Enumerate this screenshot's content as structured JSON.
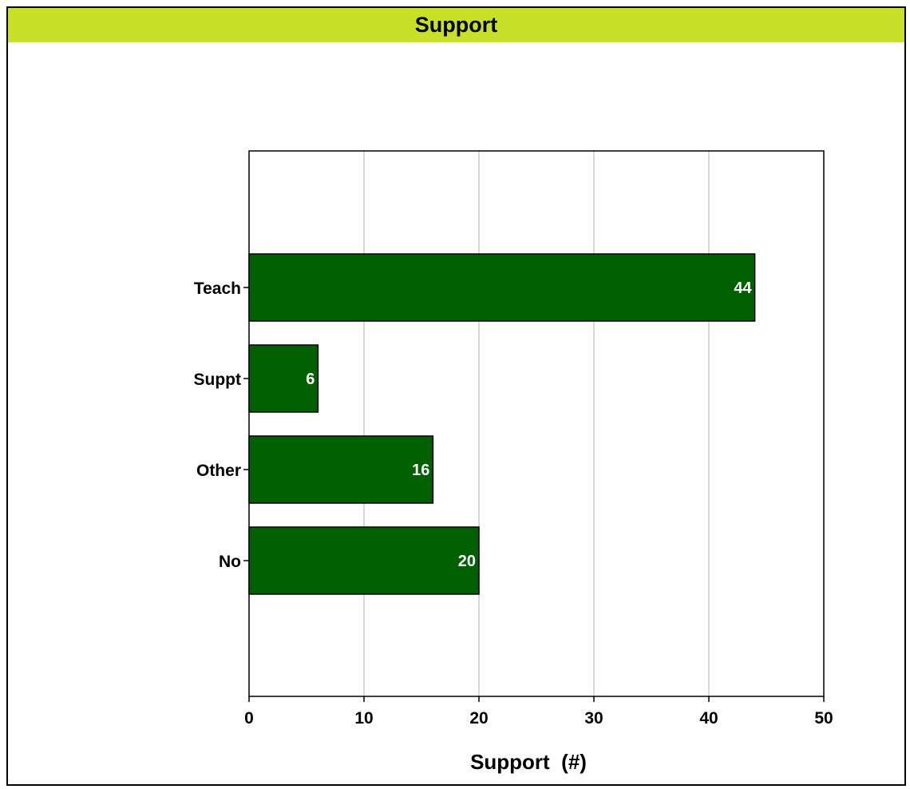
{
  "header": {
    "title": "Support"
  },
  "chart_data": {
    "type": "bar",
    "orientation": "horizontal",
    "title": "Support",
    "categories": [
      "Teach",
      "Suppt",
      "Other",
      "No"
    ],
    "values": [
      44,
      6,
      16,
      20
    ],
    "xlabel": "Support  (#)",
    "ylabel": "",
    "xlim": [
      0,
      50
    ],
    "xticks": [
      0,
      10,
      20,
      30,
      40,
      50
    ],
    "grid": "vertical",
    "bar_color": "#006000",
    "data_label_color": "#ffffff",
    "title_bar_color": "#c8e028"
  }
}
